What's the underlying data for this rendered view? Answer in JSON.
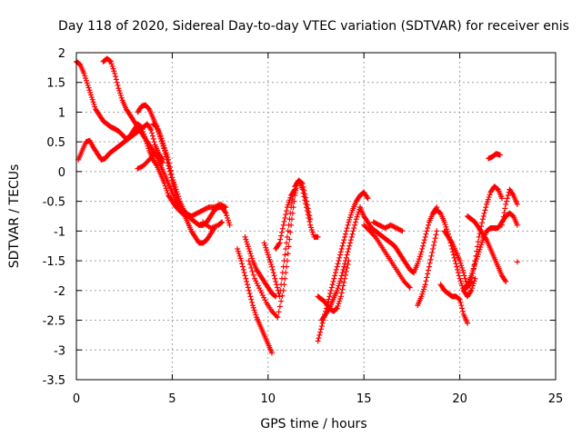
{
  "chart_data": {
    "type": "scatter",
    "title": "Day 118 of 2020, Sidereal Day-to-day VTEC variation (SDTVAR) for receiver enis",
    "xlabel": "GPS time / hours",
    "ylabel": "SDTVAR / TECUs",
    "xlim": [
      0,
      25
    ],
    "ylim": [
      -3.5,
      2
    ],
    "xticks": [
      0,
      5,
      10,
      15,
      20,
      25
    ],
    "xtick_labels": [
      "0",
      "5",
      "10",
      "15",
      "20",
      "25"
    ],
    "yticks": [
      2,
      1.5,
      1,
      0.5,
      0,
      -0.5,
      -1,
      -1.5,
      -2,
      -2.5,
      -3,
      -3.5
    ],
    "ytick_labels": [
      "2",
      "1.5",
      "1",
      "0.5",
      "0",
      "-0.5",
      "-1",
      "-1.5",
      "-2",
      "-2.5",
      "-3",
      "-3.5"
    ],
    "grid": true,
    "marker": "+",
    "color": "#ff0000",
    "series": [
      {
        "name": "s1",
        "x": [
          0.0,
          0.2,
          0.4,
          0.6,
          0.8,
          1.0,
          1.2,
          1.4,
          1.6,
          1.8,
          2.0,
          2.2,
          2.4,
          2.6,
          2.8,
          3.0,
          3.2,
          3.4,
          3.6,
          3.8,
          4.0,
          4.2,
          4.4,
          4.6,
          4.8,
          5.0,
          5.2,
          5.5,
          5.8,
          6.0,
          6.3,
          6.6,
          6.9,
          7.2,
          7.5,
          7.8
        ],
        "y": [
          1.85,
          1.8,
          1.65,
          1.45,
          1.25,
          1.05,
          0.95,
          0.85,
          0.8,
          0.75,
          0.72,
          0.68,
          0.62,
          0.55,
          0.6,
          0.7,
          0.8,
          0.75,
          0.55,
          0.35,
          0.2,
          0.1,
          -0.05,
          -0.2,
          -0.4,
          -0.5,
          -0.6,
          -0.7,
          -0.72,
          -0.75,
          -0.7,
          -0.65,
          -0.6,
          -0.6,
          -0.55,
          -0.6
        ]
      },
      {
        "name": "s2",
        "x": [
          0.1,
          0.3,
          0.5,
          0.7,
          0.9,
          1.1,
          1.3,
          1.5,
          1.7,
          1.9,
          2.1,
          2.3,
          2.5,
          2.7,
          2.9,
          3.1,
          3.3,
          3.5,
          3.7,
          3.9,
          4.1,
          4.3,
          4.5
        ],
        "y": [
          0.2,
          0.35,
          0.5,
          0.52,
          0.4,
          0.3,
          0.2,
          0.22,
          0.3,
          0.35,
          0.4,
          0.45,
          0.5,
          0.55,
          0.6,
          0.65,
          0.7,
          0.75,
          0.8,
          0.7,
          0.45,
          0.3,
          0.2
        ]
      },
      {
        "name": "s3",
        "x": [
          1.4,
          1.6,
          1.8,
          2.0,
          2.2,
          2.4,
          2.6,
          2.8,
          3.0,
          3.2,
          3.4,
          3.6,
          3.8,
          4.0,
          4.2,
          4.4,
          4.6,
          4.8,
          5.0,
          5.2,
          5.4,
          5.6,
          5.8,
          6.0,
          6.2,
          6.4,
          6.6,
          6.8,
          7.0,
          7.2
        ],
        "y": [
          1.85,
          1.9,
          1.85,
          1.65,
          1.4,
          1.2,
          1.05,
          0.95,
          0.85,
          0.75,
          0.65,
          0.55,
          0.45,
          0.35,
          0.25,
          0.1,
          -0.05,
          -0.2,
          -0.35,
          -0.5,
          -0.6,
          -0.7,
          -0.85,
          -1.0,
          -1.1,
          -1.2,
          -1.2,
          -1.15,
          -1.05,
          -0.95
        ]
      },
      {
        "name": "s4",
        "x": [
          3.2,
          3.4,
          3.6,
          3.8,
          4.0,
          4.2,
          4.4,
          4.6,
          4.8,
          5.0,
          5.2,
          5.4,
          5.6,
          5.8
        ],
        "y": [
          1.0,
          1.1,
          1.12,
          1.05,
          0.9,
          0.75,
          0.55,
          0.35,
          0.1,
          -0.15,
          -0.4,
          -0.6,
          -0.7,
          -0.75
        ]
      },
      {
        "name": "s5",
        "x": [
          3.2,
          3.5,
          3.8,
          4.1,
          4.3,
          4.5
        ],
        "y": [
          0.05,
          0.1,
          0.2,
          0.3,
          0.25,
          0.15
        ]
      },
      {
        "name": "s6",
        "x": [
          4.0,
          4.2,
          4.4,
          4.6,
          4.8,
          5.0,
          5.2,
          5.4,
          5.6,
          5.8,
          6.0,
          6.2,
          6.4,
          6.6,
          6.8,
          7.0,
          7.2,
          7.4,
          7.6,
          7.8,
          8.0
        ],
        "y": [
          0.8,
          0.75,
          0.6,
          0.4,
          0.2,
          -0.1,
          -0.3,
          -0.5,
          -0.65,
          -0.72,
          -0.8,
          -0.85,
          -0.9,
          -0.9,
          -0.85,
          -0.75,
          -0.65,
          -0.6,
          -0.6,
          -0.7,
          -0.9
        ]
      },
      {
        "name": "s7",
        "x": [
          6.6,
          7.0,
          7.4,
          7.6
        ],
        "y": [
          -0.85,
          -0.95,
          -0.9,
          -0.85
        ]
      },
      {
        "name": "s8",
        "x": [
          8.8,
          9.0,
          9.2,
          9.4,
          9.6,
          9.8,
          10.0,
          10.2,
          10.4
        ],
        "y": [
          -1.1,
          -1.3,
          -1.5,
          -1.65,
          -1.75,
          -1.85,
          -1.95,
          -2.05,
          -2.1
        ]
      },
      {
        "name": "s9",
        "x": [
          8.4,
          8.6,
          8.8,
          9.0,
          9.2,
          9.4,
          9.6,
          9.8,
          10.0,
          10.2
        ],
        "y": [
          -1.3,
          -1.5,
          -1.75,
          -2.0,
          -2.25,
          -2.45,
          -2.6,
          -2.75,
          -2.9,
          -3.05
        ]
      },
      {
        "name": "s10",
        "x": [
          9.0,
          9.3,
          9.6,
          9.9,
          10.2,
          10.5,
          10.8,
          11.0,
          11.2,
          11.4,
          11.5,
          11.6,
          11.8,
          12.0,
          12.2,
          12.4,
          12.6
        ],
        "y": [
          -1.5,
          -1.8,
          -2.0,
          -2.2,
          -2.35,
          -2.45,
          -2.0,
          -1.5,
          -0.9,
          -0.4,
          -0.2,
          -0.15,
          -0.3,
          -0.6,
          -0.9,
          -1.1,
          -1.1
        ]
      },
      {
        "name": "s11",
        "x": [
          9.8,
          10.0,
          10.2,
          10.4,
          10.6,
          10.8,
          11.0,
          11.2,
          11.4,
          11.6,
          11.8,
          12.0,
          12.2
        ],
        "y": [
          -1.2,
          -1.4,
          -1.6,
          -1.85,
          -2.1,
          -1.6,
          -1.1,
          -0.6,
          -0.25,
          -0.15,
          -0.2,
          -0.5,
          -0.8
        ]
      },
      {
        "name": "s12",
        "x": [
          10.4,
          10.6,
          10.8,
          11.0,
          11.2,
          11.4
        ],
        "y": [
          -1.3,
          -1.2,
          -0.9,
          -0.6,
          -0.4,
          -0.3
        ]
      },
      {
        "name": "s13",
        "x": [
          12.6,
          12.8,
          13.0,
          13.2,
          13.4,
          13.6,
          13.8,
          14.0,
          14.2,
          14.4,
          14.6,
          14.8,
          15.0,
          15.2
        ],
        "y": [
          -2.85,
          -2.6,
          -2.35,
          -2.1,
          -1.85,
          -1.6,
          -1.35,
          -1.1,
          -0.85,
          -0.65,
          -0.5,
          -0.4,
          -0.35,
          -0.45
        ]
      },
      {
        "name": "s14",
        "x": [
          12.6,
          12.8,
          13.0,
          13.2,
          13.4,
          13.6,
          13.8,
          14.0,
          14.2
        ],
        "y": [
          -2.1,
          -2.15,
          -2.2,
          -2.3,
          -2.35,
          -2.3,
          -2.1,
          -1.8,
          -1.5
        ]
      },
      {
        "name": "s15",
        "x": [
          12.8,
          13.0,
          13.2,
          13.4,
          13.6,
          13.8,
          14.0,
          14.2,
          14.4,
          14.6,
          14.8
        ],
        "y": [
          -2.5,
          -2.4,
          -2.3,
          -2.15,
          -2.0,
          -1.8,
          -1.55,
          -1.3,
          -1.05,
          -0.8,
          -0.6
        ]
      },
      {
        "name": "s16",
        "x": [
          14.8,
          15.0,
          15.2,
          15.4,
          15.6,
          15.8,
          16.0,
          16.2,
          16.4,
          16.6,
          16.8,
          17.0,
          17.2,
          17.4,
          17.6,
          17.8,
          18.0,
          18.2,
          18.4,
          18.6,
          18.8
        ],
        "y": [
          -0.6,
          -0.75,
          -0.85,
          -0.95,
          -1.0,
          -1.05,
          -1.1,
          -1.15,
          -1.2,
          -1.25,
          -1.35,
          -1.45,
          -1.55,
          -1.65,
          -1.7,
          -1.55,
          -1.35,
          -1.1,
          -0.85,
          -0.7,
          -0.6
        ]
      },
      {
        "name": "s17",
        "x": [
          15.0,
          15.3,
          15.6,
          15.9,
          16.2,
          16.5,
          16.8,
          17.1,
          17.4
        ],
        "y": [
          -0.9,
          -1.0,
          -1.1,
          -1.25,
          -1.4,
          -1.55,
          -1.7,
          -1.85,
          -1.95
        ]
      },
      {
        "name": "s18",
        "x": [
          15.5,
          15.8,
          16.1,
          16.4,
          16.7,
          17.0
        ],
        "y": [
          -0.85,
          -0.9,
          -0.95,
          -0.9,
          -0.95,
          -1.0
        ]
      },
      {
        "name": "s19",
        "x": [
          17.8,
          18.0,
          18.2,
          18.4,
          18.6,
          18.8
        ],
        "y": [
          -2.25,
          -2.1,
          -1.9,
          -1.6,
          -1.3,
          -1.0
        ]
      },
      {
        "name": "s20",
        "x": [
          18.6,
          18.8,
          19.0,
          19.2,
          19.4,
          19.6,
          19.8,
          20.0,
          20.2,
          20.4,
          20.6,
          20.8
        ],
        "y": [
          -0.7,
          -0.65,
          -0.7,
          -0.85,
          -1.05,
          -1.3,
          -1.55,
          -1.8,
          -2.0,
          -2.1,
          -2.0,
          -1.8
        ]
      },
      {
        "name": "s21",
        "x": [
          19.0,
          19.2,
          19.4,
          19.6,
          19.8,
          20.0,
          20.2,
          20.4
        ],
        "y": [
          -1.9,
          -2.0,
          -2.05,
          -2.1,
          -2.1,
          -2.15,
          -2.4,
          -2.55
        ]
      },
      {
        "name": "s22",
        "x": [
          19.2,
          19.4,
          19.6,
          19.8,
          20.0,
          20.2,
          20.4,
          20.6,
          20.8,
          21.0,
          21.2,
          21.4,
          21.6,
          21.8,
          22.0,
          22.2
        ],
        "y": [
          -1.0,
          -1.1,
          -1.2,
          -1.35,
          -1.5,
          -1.7,
          -1.95,
          -1.85,
          -1.5,
          -1.1,
          -0.8,
          -0.55,
          -0.35,
          -0.25,
          -0.3,
          -0.45
        ]
      },
      {
        "name": "s23",
        "x": [
          20.2,
          20.4,
          20.6,
          20.8,
          21.0,
          21.2,
          21.4,
          21.6,
          21.8,
          22.0,
          22.2,
          22.4,
          22.6,
          22.8,
          23.0
        ],
        "y": [
          -2.0,
          -1.9,
          -1.75,
          -1.55,
          -1.35,
          -1.15,
          -1.0,
          -0.95,
          -0.95,
          -0.95,
          -0.85,
          -0.75,
          -0.7,
          -0.75,
          -0.9
        ]
      },
      {
        "name": "s24",
        "x": [
          20.4,
          20.6,
          20.8,
          21.0,
          21.2,
          21.4,
          21.6,
          21.8,
          22.0,
          22.2,
          22.4
        ],
        "y": [
          -0.75,
          -0.8,
          -0.85,
          -0.95,
          -1.05,
          -1.15,
          -1.3,
          -1.45,
          -1.6,
          -1.75,
          -1.85
        ]
      },
      {
        "name": "s25",
        "x": [
          21.5,
          21.7,
          21.9,
          22.1
        ],
        "y": [
          0.22,
          0.25,
          0.3,
          0.28
        ]
      },
      {
        "name": "s26",
        "x": [
          22.2,
          22.4,
          22.6,
          22.8,
          23.0
        ],
        "y": [
          -0.9,
          -0.55,
          -0.3,
          -0.4,
          -0.55
        ]
      },
      {
        "name": "s27",
        "x": [
          23.0
        ],
        "y": [
          -1.52
        ]
      }
    ]
  }
}
